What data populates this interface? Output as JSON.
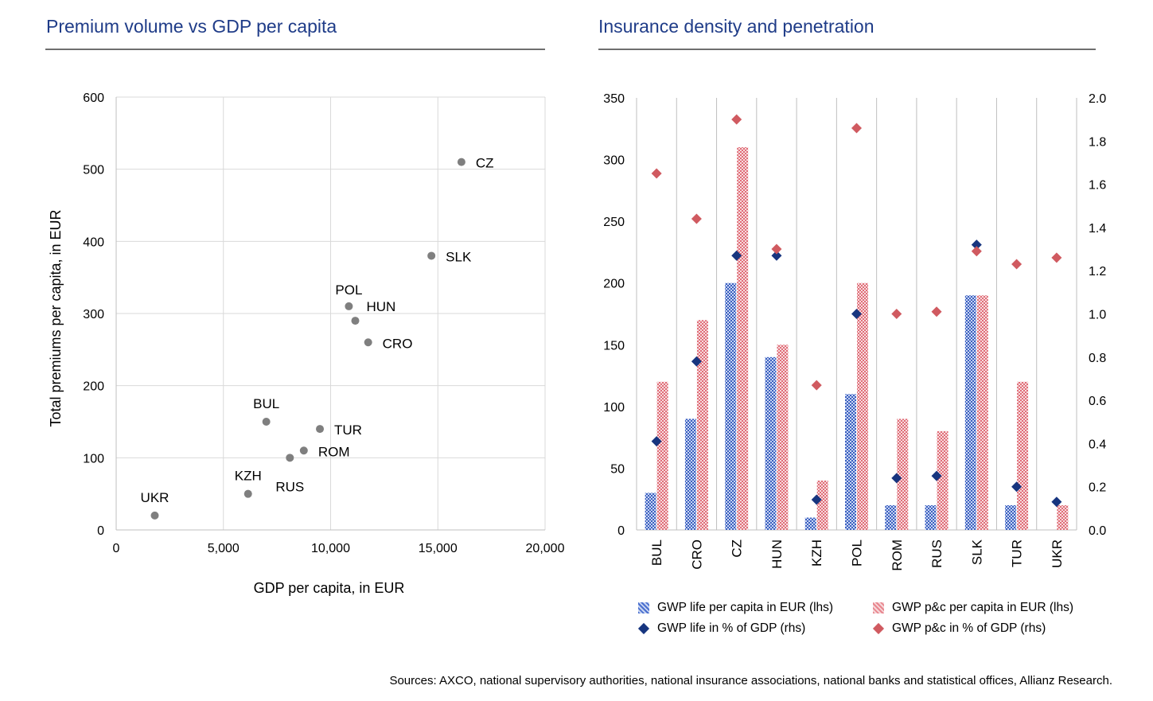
{
  "left": {
    "title": "Premium volume vs GDP per capita"
  },
  "right": {
    "title": "Insurance density and penetration"
  },
  "source": "Sources: AXCO, national supervisory authorities, national insurance associations, national banks and statistical offices, Allianz Research.",
  "colors": {
    "title": "#1f3c88",
    "scatter_point": "#7f7f7f",
    "life": "#3b5fc0",
    "pc": "#e06d77",
    "life_diamond": "#17357f",
    "pc_diamond": "#d05a60"
  },
  "chart_data": [
    {
      "type": "scatter",
      "xlabel": "GDP per capita, in EUR",
      "ylabel": "Total premiums per capita, in EUR",
      "xlim": [
        0,
        20000
      ],
      "ylim": [
        0,
        600
      ],
      "x_ticks": [
        "0",
        "5,000",
        "10,000",
        "15,000",
        "20,000"
      ],
      "y_ticks": [
        "0",
        "100",
        "200",
        "300",
        "400",
        "500",
        "600"
      ],
      "grid": true,
      "points": [
        {
          "label": "CZ",
          "x": 16100,
          "y": 510
        },
        {
          "label": "SLK",
          "x": 14700,
          "y": 380
        },
        {
          "label": "POL",
          "x": 10850,
          "y": 310
        },
        {
          "label": "HUN",
          "x": 11150,
          "y": 290
        },
        {
          "label": "CRO",
          "x": 11750,
          "y": 260
        },
        {
          "label": "BUL",
          "x": 7000,
          "y": 150
        },
        {
          "label": "TUR",
          "x": 9500,
          "y": 140
        },
        {
          "label": "ROM",
          "x": 8750,
          "y": 110
        },
        {
          "label": "RUS",
          "x": 8100,
          "y": 100
        },
        {
          "label": "KZH",
          "x": 6150,
          "y": 50
        },
        {
          "label": "UKR",
          "x": 1800,
          "y": 20
        }
      ]
    },
    {
      "type": "bar",
      "categories": [
        "BUL",
        "CRO",
        "CZ",
        "HUN",
        "KZH",
        "POL",
        "ROM",
        "RUS",
        "SLK",
        "TUR",
        "UKR"
      ],
      "ylim_left": [
        0,
        350
      ],
      "ylim_right": [
        0,
        2.0
      ],
      "y_ticks_left": [
        "0",
        "50",
        "100",
        "150",
        "200",
        "250",
        "300",
        "350"
      ],
      "y_ticks_right": [
        "0.0",
        "0.2",
        "0.4",
        "0.6",
        "0.8",
        "1.0",
        "1.2",
        "1.4",
        "1.6",
        "1.8",
        "2.0"
      ],
      "series": [
        {
          "name": "GWP life per capita in EUR (lhs)",
          "kind": "bar",
          "axis": "left",
          "values": [
            30,
            90,
            200,
            140,
            10,
            110,
            20,
            20,
            190,
            20,
            0
          ]
        },
        {
          "name": "GWP p&c per capita in EUR (lhs)",
          "kind": "bar",
          "axis": "left",
          "values": [
            120,
            170,
            310,
            150,
            40,
            200,
            90,
            80,
            190,
            120,
            20
          ]
        },
        {
          "name": "GWP life in % of GDP (rhs)",
          "kind": "marker",
          "axis": "right",
          "values": [
            0.41,
            0.78,
            1.27,
            1.27,
            0.14,
            1.0,
            0.24,
            0.25,
            1.32,
            0.2,
            0.13
          ]
        },
        {
          "name": "GWP p&c in % of GDP (rhs)",
          "kind": "marker",
          "axis": "right",
          "values": [
            1.65,
            1.44,
            1.9,
            1.3,
            0.67,
            1.86,
            1.0,
            1.01,
            1.29,
            1.23,
            1.26
          ]
        }
      ],
      "legend_position": "bottom"
    }
  ]
}
